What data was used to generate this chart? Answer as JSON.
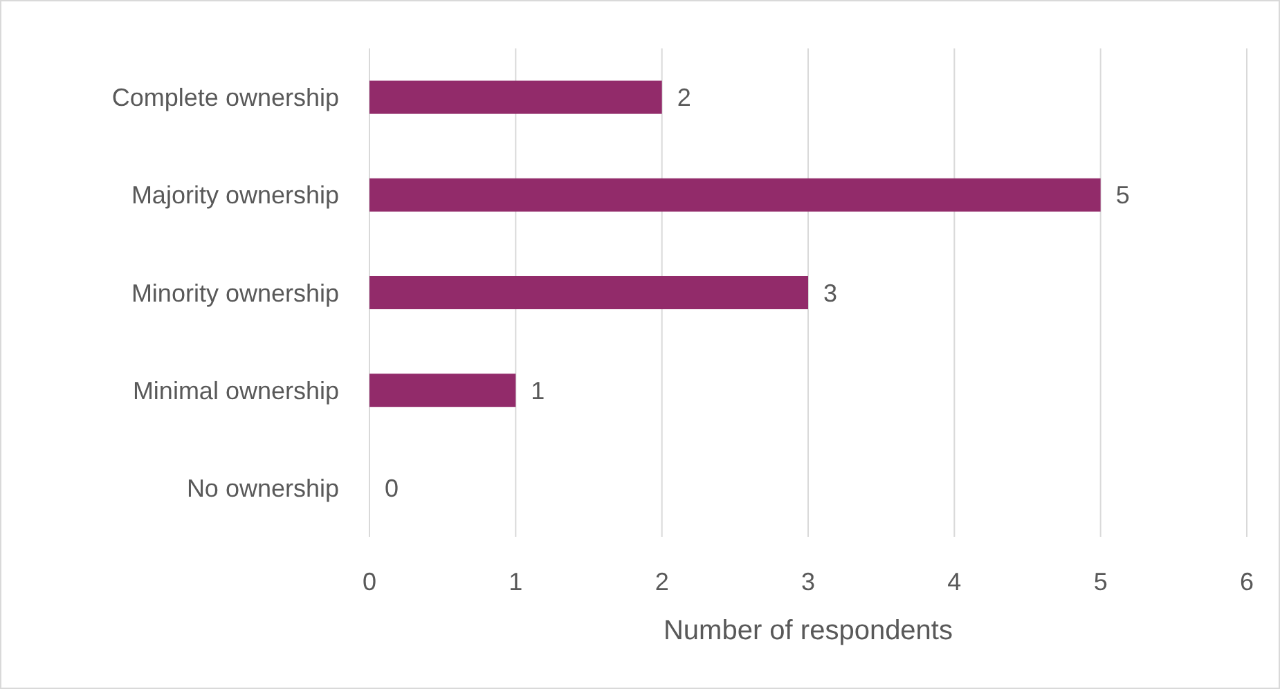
{
  "chart_data": {
    "type": "bar",
    "orientation": "horizontal",
    "categories": [
      "Complete ownership",
      "Majority ownership",
      "Minority ownership",
      "Minimal ownership",
      "No ownership"
    ],
    "values": [
      2,
      5,
      3,
      1,
      0
    ],
    "color": "#922b6a",
    "xlabel": "Number of respondents",
    "xlim": [
      0,
      6
    ],
    "xticks": [
      0,
      1,
      2,
      3,
      4,
      5,
      6
    ],
    "grid": "x",
    "data_labels": true
  }
}
